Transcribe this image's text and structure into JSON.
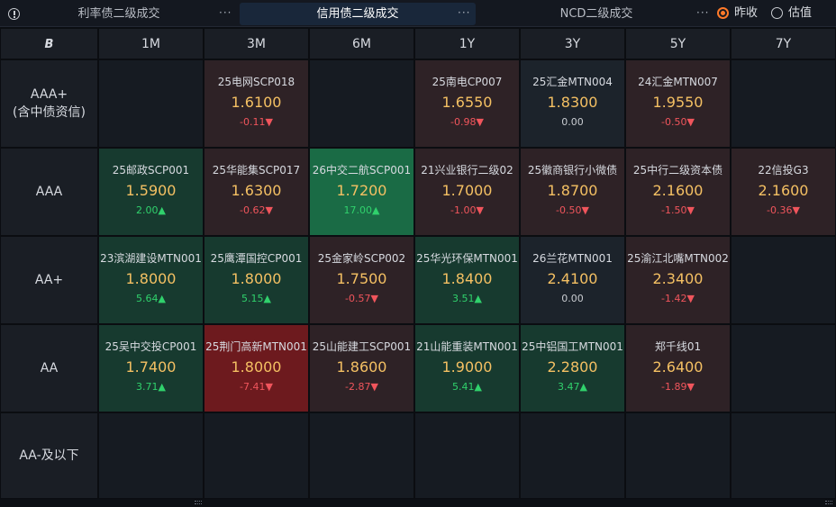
{
  "header": {
    "tabs": [
      {
        "label": "利率债二级成交",
        "active": false
      },
      {
        "label": "信用债二级成交",
        "active": true
      },
      {
        "label": "NCD二级成交",
        "active": false
      }
    ],
    "more_label": "···",
    "radios": [
      {
        "label": "昨收",
        "selected": true
      },
      {
        "label": "估值",
        "selected": false
      }
    ]
  },
  "grid": {
    "corner_icon": "B",
    "columns": [
      "1M",
      "3M",
      "6M",
      "1Y",
      "3Y",
      "5Y",
      "7Y"
    ],
    "rows": [
      {
        "label_lines": [
          "AAA+",
          "(含中债资信)"
        ],
        "cells": [
          null,
          {
            "name": "25电网SCP018",
            "yield": "1.6100",
            "change": "-0.11▼",
            "dir": "down",
            "bg": "#2e2226"
          },
          null,
          {
            "name": "25南电CP007",
            "yield": "1.6550",
            "change": "-0.98▼",
            "dir": "down",
            "bg": "#2e2226"
          },
          {
            "name": "25汇金MTN004",
            "yield": "1.8300",
            "change": "0.00",
            "dir": "flat",
            "bg": "#1c232b"
          },
          {
            "name": "24汇金MTN007",
            "yield": "1.9550",
            "change": "-0.50▼",
            "dir": "down",
            "bg": "#2e2226"
          },
          null
        ]
      },
      {
        "label_lines": [
          "AAA"
        ],
        "cells": [
          {
            "name": "25邮政SCP001",
            "yield": "1.5900",
            "change": "2.00▲",
            "dir": "up",
            "bg": "#173a2f"
          },
          {
            "name": "25华能集SCP017",
            "yield": "1.6300",
            "change": "-0.62▼",
            "dir": "down",
            "bg": "#2e2226"
          },
          {
            "name": "26中交二航SCP001",
            "yield": "1.7200",
            "change": "17.00▲",
            "dir": "up",
            "bg": "#1a6b45"
          },
          {
            "name": "21兴业银行二级02",
            "yield": "1.7000",
            "change": "-1.00▼",
            "dir": "down",
            "bg": "#2e2226"
          },
          {
            "name": "25徽商银行小微债",
            "yield": "1.8700",
            "change": "-0.50▼",
            "dir": "down",
            "bg": "#2e2226"
          },
          {
            "name": "25中行二级资本债",
            "yield": "2.1600",
            "change": "-1.50▼",
            "dir": "down",
            "bg": "#2e2226"
          },
          {
            "name": "22信投G3",
            "yield": "2.1600",
            "change": "-0.36▼",
            "dir": "down",
            "bg": "#2e2226"
          }
        ]
      },
      {
        "label_lines": [
          "AA+"
        ],
        "cells": [
          {
            "name": "23滨湖建设MTN001",
            "yield": "1.8000",
            "change": "5.64▲",
            "dir": "up",
            "bg": "#173a2f"
          },
          {
            "name": "25鹰潭国控CP001",
            "yield": "1.8000",
            "change": "5.15▲",
            "dir": "up",
            "bg": "#173a2f"
          },
          {
            "name": "25金家岭SCP002",
            "yield": "1.7500",
            "change": "-0.57▼",
            "dir": "down",
            "bg": "#2e2226"
          },
          {
            "name": "25华光环保MTN001",
            "yield": "1.8400",
            "change": "3.51▲",
            "dir": "up",
            "bg": "#173a2f"
          },
          {
            "name": "26兰花MTN001",
            "yield": "2.4100",
            "change": "0.00",
            "dir": "flat",
            "bg": "#1c232b"
          },
          {
            "name": "25渝江北嘴MTN002",
            "yield": "2.3400",
            "change": "-1.42▼",
            "dir": "down",
            "bg": "#2e2226"
          },
          null
        ]
      },
      {
        "label_lines": [
          "AA"
        ],
        "cells": [
          {
            "name": "25吴中交投CP001",
            "yield": "1.7400",
            "change": "3.71▲",
            "dir": "up",
            "bg": "#173a2f"
          },
          {
            "name": "25荆门高新MTN001",
            "yield": "1.8000",
            "change": "-7.41▼",
            "dir": "down",
            "bg": "#6d1a1e"
          },
          {
            "name": "25山能建工SCP001",
            "yield": "1.8600",
            "change": "-2.87▼",
            "dir": "down",
            "bg": "#2e2226"
          },
          {
            "name": "21山能重装MTN001",
            "yield": "1.9000",
            "change": "5.41▲",
            "dir": "up",
            "bg": "#173a2f"
          },
          {
            "name": "25中铝国工MTN001",
            "yield": "2.2800",
            "change": "3.47▲",
            "dir": "up",
            "bg": "#173a2f"
          },
          {
            "name": "郑千线01",
            "yield": "2.6400",
            "change": "-1.89▼",
            "dir": "down",
            "bg": "#2e2226"
          },
          null
        ]
      },
      {
        "label_lines": [
          "AA-及以下"
        ],
        "cells": [
          null,
          null,
          null,
          null,
          null,
          null,
          null
        ]
      }
    ]
  },
  "colors": {
    "yield": "#f4c063",
    "up": "#30d16c",
    "down": "#f0555c",
    "accent": "#ff7a29"
  }
}
